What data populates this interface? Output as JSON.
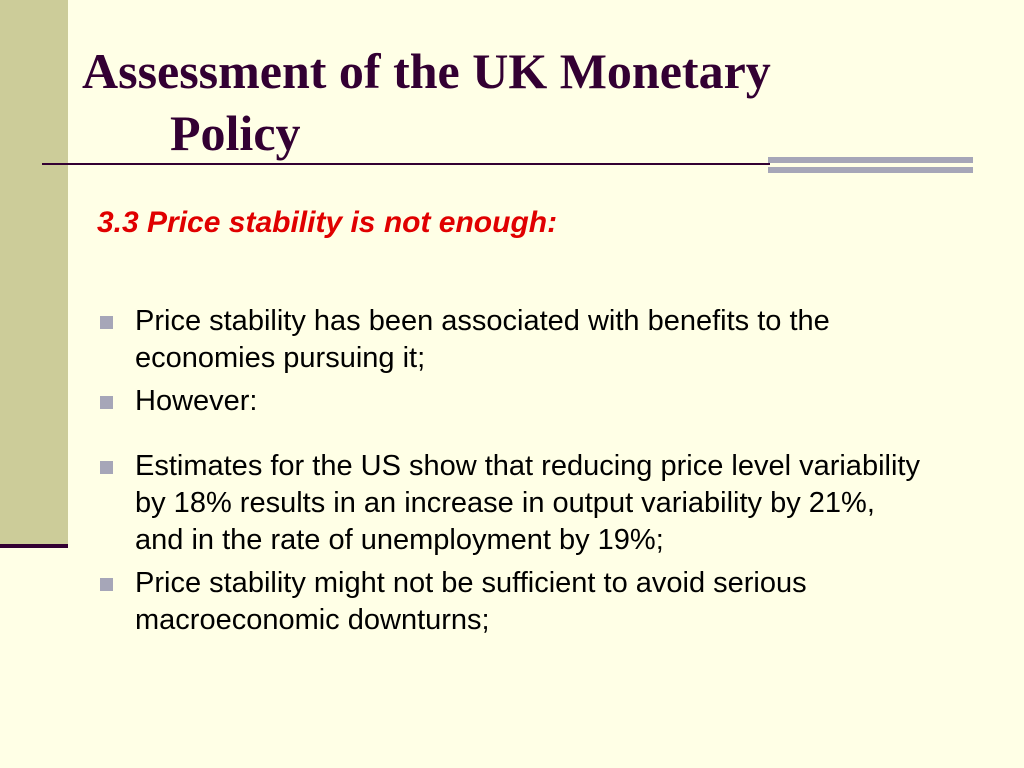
{
  "slide": {
    "title_line1": "Assessment of the UK Monetary",
    "title_line2": "Policy",
    "subtitle": "3.3 Price stability is not enough:",
    "bullets": [
      "Price stability has been associated with benefits to the economies pursuing it;",
      "However:",
      "Estimates for the US show that reducing price level variability by 18% results in an increase in output variability by 21%, and in the rate of unemployment by 19%;",
      "Price stability might not be sufficient to avoid serious macroeconomic downturns;"
    ]
  },
  "colors": {
    "background": "#FFFFE6",
    "side_band": "#CCCC99",
    "title": "#330033",
    "subtitle": "#E00000",
    "bullet_marker": "#A6A6B8"
  }
}
